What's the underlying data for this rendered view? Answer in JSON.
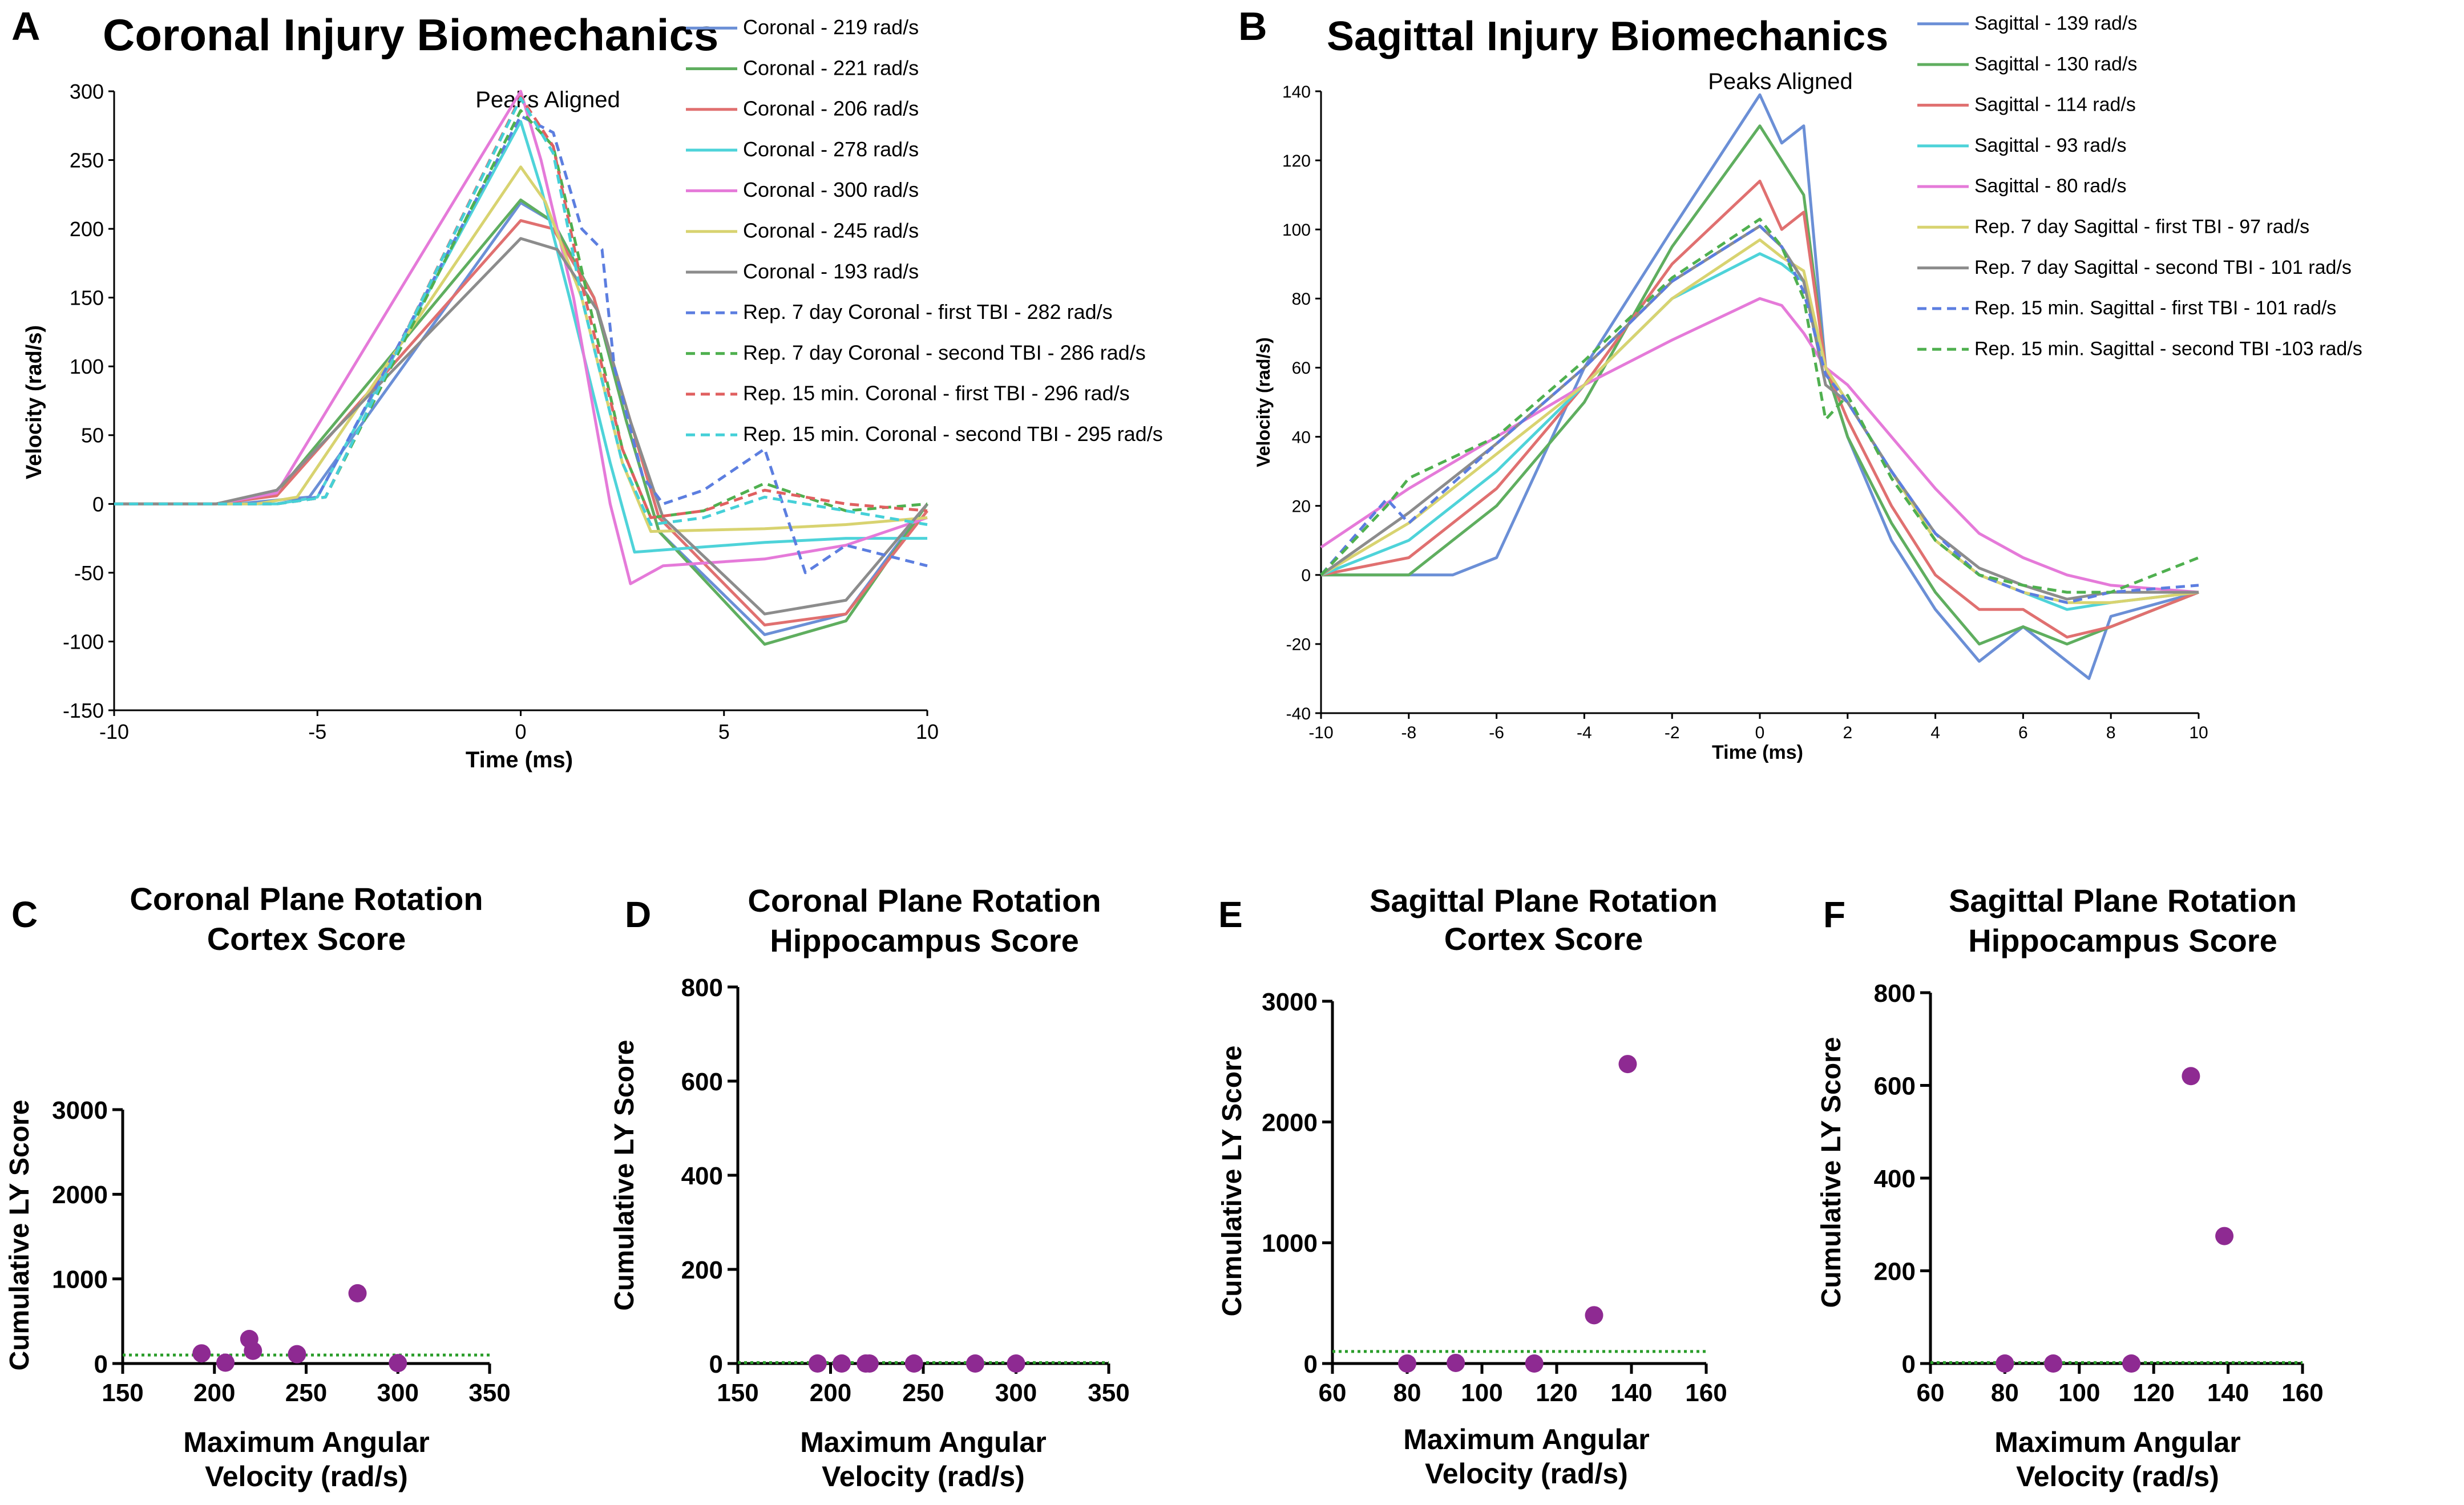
{
  "panel_letters": [
    "A",
    "B",
    "C",
    "D",
    "E",
    "F"
  ],
  "chart_data": [
    {
      "id": "A",
      "type": "line",
      "title": "Coronal Injury Biomechanics",
      "annotation": "Peaks Aligned",
      "xlabel": "Time (ms)",
      "ylabel": "Velocity (rad/s)",
      "xlim": [
        -10,
        10
      ],
      "ylim": [
        -150,
        300
      ],
      "xticks": [
        -10,
        -5,
        0,
        5,
        10
      ],
      "yticks": [
        -150,
        -100,
        -50,
        0,
        50,
        100,
        150,
        200,
        250,
        300
      ],
      "series": [
        {
          "name": "Coronal - 219 rad/s",
          "color": "#6b8fd6",
          "dash": false,
          "x": [
            -10,
            -7,
            -5.2,
            0,
            0.8,
            1.8,
            2.6,
            3.4,
            6,
            8,
            10
          ],
          "y": [
            0,
            0,
            5,
            219,
            205,
            150,
            60,
            -20,
            -95,
            -80,
            0
          ]
        },
        {
          "name": "Coronal - 221 rad/s",
          "color": "#5fae5f",
          "dash": false,
          "x": [
            -10,
            -7.5,
            -6,
            0,
            0.8,
            1.8,
            2.6,
            3.4,
            6,
            8,
            10
          ],
          "y": [
            0,
            0,
            8,
            221,
            205,
            150,
            60,
            -20,
            -102,
            -85,
            0
          ]
        },
        {
          "name": "Coronal - 206 rad/s",
          "color": "#e07070",
          "dash": false,
          "x": [
            -10,
            -7.5,
            -6,
            0,
            0.8,
            1.8,
            2.6,
            3.4,
            6,
            8,
            10
          ],
          "y": [
            0,
            0,
            6,
            206,
            200,
            150,
            70,
            -10,
            -88,
            -80,
            -5
          ]
        },
        {
          "name": "Coronal - 278 rad/s",
          "color": "#4ed3d9",
          "dash": false,
          "x": [
            -10,
            -6,
            -5,
            0,
            0.5,
            1.2,
            2.2,
            2.8,
            6,
            8,
            10
          ],
          "y": [
            0,
            0,
            5,
            278,
            230,
            150,
            30,
            -35,
            -28,
            -25,
            -25
          ]
        },
        {
          "name": "Coronal - 300 rad/s",
          "color": "#e57ad9",
          "dash": false,
          "x": [
            -10,
            -7.5,
            -6,
            0,
            0.5,
            1.3,
            2.2,
            2.7,
            3.5,
            6,
            8,
            10
          ],
          "y": [
            0,
            0,
            8,
            300,
            250,
            150,
            0,
            -58,
            -45,
            -40,
            -30,
            -10
          ]
        },
        {
          "name": "Coronal - 245 rad/s",
          "color": "#d8d370",
          "dash": false,
          "x": [
            -10,
            -6.5,
            -5.5,
            0,
            0.6,
            1.5,
            2.5,
            3.2,
            6,
            8,
            10
          ],
          "y": [
            0,
            0,
            5,
            245,
            220,
            150,
            30,
            -20,
            -18,
            -15,
            -10
          ]
        },
        {
          "name": "Coronal - 193 rad/s",
          "color": "#8c8c8c",
          "dash": false,
          "x": [
            -10,
            -7.5,
            -6,
            0,
            0.9,
            1.9,
            2.7,
            3.5,
            6,
            8,
            10
          ],
          "y": [
            0,
            0,
            10,
            193,
            185,
            140,
            60,
            -10,
            -80,
            -70,
            0
          ]
        },
        {
          "name": "Rep. 7 day Coronal - first TBI - 282 rad/s",
          "color": "#5c7ee0",
          "dash": true,
          "x": [
            -10,
            -6,
            -5,
            0,
            0.8,
            1.5,
            2,
            2.3,
            3,
            3.5,
            4.5,
            6,
            7,
            8,
            10
          ],
          "y": [
            0,
            0,
            5,
            282,
            270,
            200,
            185,
            100,
            20,
            0,
            10,
            40,
            -50,
            -30,
            -45
          ]
        },
        {
          "name": "Rep. 7 day Coronal - second TBI - 286 rad/s",
          "color": "#4fb04f",
          "dash": true,
          "x": [
            -10,
            -6,
            -4.8,
            0,
            0.8,
            1.5,
            2.5,
            3.2,
            4.5,
            6,
            7,
            8,
            10
          ],
          "y": [
            0,
            0,
            5,
            286,
            260,
            170,
            40,
            -10,
            -5,
            15,
            5,
            -5,
            0
          ]
        },
        {
          "name": "Rep. 15 min. Coronal - first TBI - 296 rad/s",
          "color": "#e06060",
          "dash": true,
          "x": [
            -10,
            -6,
            -4.8,
            0,
            0.8,
            1.5,
            2.5,
            3.2,
            4.5,
            6,
            8,
            10
          ],
          "y": [
            0,
            0,
            5,
            296,
            260,
            160,
            40,
            -10,
            -5,
            10,
            0,
            -5
          ]
        },
        {
          "name": "Rep. 15 min. Coronal - second TBI - 295 rad/s",
          "color": "#45d0d8",
          "dash": true,
          "x": [
            -10,
            -6,
            -4.8,
            0,
            0.8,
            1.5,
            2.5,
            3.2,
            4.5,
            6,
            8,
            10
          ],
          "y": [
            0,
            0,
            5,
            295,
            255,
            150,
            30,
            -15,
            -10,
            5,
            -5,
            -15
          ]
        }
      ]
    },
    {
      "id": "B",
      "type": "line",
      "title": "Sagittal Injury Biomechanics",
      "annotation": "Peaks Aligned",
      "xlabel": "Time (ms)",
      "ylabel": "Velocity (rad/s)",
      "xlim": [
        -10,
        10
      ],
      "ylim": [
        -40,
        140
      ],
      "xticks": [
        -10,
        -8,
        -6,
        -4,
        -2,
        0,
        2,
        4,
        6,
        8,
        10
      ],
      "yticks": [
        -40,
        -20,
        0,
        20,
        40,
        60,
        80,
        100,
        120,
        140
      ],
      "series": [
        {
          "name": "Sagittal - 139 rad/s",
          "color": "#6b8fd6",
          "dash": false,
          "x": [
            -10,
            -7,
            -6,
            -4,
            -2,
            0,
            0.5,
            1,
            1.5,
            2,
            3,
            4,
            5,
            6,
            7,
            7.5,
            8,
            10
          ],
          "y": [
            0,
            0,
            5,
            60,
            100,
            139,
            125,
            130,
            60,
            40,
            10,
            -10,
            -25,
            -15,
            -25,
            -30,
            -12,
            -5
          ]
        },
        {
          "name": "Sagittal - 130 rad/s",
          "color": "#5fae5f",
          "dash": false,
          "x": [
            -10,
            -8,
            -6,
            -4,
            -2,
            0,
            0.5,
            1,
            1.5,
            2,
            3,
            4,
            5,
            6,
            7,
            8,
            10
          ],
          "y": [
            0,
            0,
            20,
            50,
            95,
            130,
            120,
            110,
            60,
            40,
            15,
            -5,
            -20,
            -15,
            -20,
            -15,
            -5
          ]
        },
        {
          "name": "Sagittal - 114 rad/s",
          "color": "#e07070",
          "dash": false,
          "x": [
            -10,
            -8,
            -6,
            -4,
            -2,
            0,
            0.5,
            1,
            1.5,
            2,
            3,
            4,
            5,
            6,
            7,
            8,
            10
          ],
          "y": [
            0,
            5,
            25,
            55,
            90,
            114,
            100,
            105,
            60,
            45,
            20,
            0,
            -10,
            -10,
            -18,
            -15,
            -5
          ]
        },
        {
          "name": "Sagittal - 93 rad/s",
          "color": "#4ed3d9",
          "dash": false,
          "x": [
            -10,
            -8,
            -6,
            -4,
            -2,
            0,
            0.5,
            1,
            1.5,
            2,
            3,
            4,
            5,
            6,
            7,
            8,
            10
          ],
          "y": [
            0,
            10,
            30,
            55,
            80,
            93,
            90,
            85,
            60,
            50,
            30,
            10,
            0,
            -5,
            -10,
            -8,
            -5
          ]
        },
        {
          "name": "Sagittal - 80 rad/s",
          "color": "#e57ad9",
          "dash": false,
          "x": [
            -10,
            -8,
            -6,
            -4,
            -2,
            0,
            0.5,
            1,
            1.5,
            2,
            3,
            4,
            5,
            6,
            7,
            8,
            10
          ],
          "y": [
            8,
            25,
            40,
            55,
            68,
            80,
            78,
            70,
            60,
            55,
            40,
            25,
            12,
            5,
            0,
            -3,
            -5
          ]
        },
        {
          "name": "Rep. 7 day Sagittal - first TBI - 97 rad/s",
          "color": "#d8d370",
          "dash": false,
          "x": [
            -10,
            -8,
            -6,
            -4,
            -2,
            0,
            0.5,
            1,
            1.5,
            2,
            3,
            4,
            5,
            6,
            7,
            8,
            10
          ],
          "y": [
            0,
            15,
            35,
            55,
            80,
            97,
            92,
            88,
            60,
            50,
            30,
            10,
            0,
            -5,
            -8,
            -8,
            -5
          ]
        },
        {
          "name": "Rep. 7 day Sagittal - second TBI - 101 rad/s",
          "color": "#8c8c8c",
          "dash": false,
          "x": [
            -10,
            -8,
            -6,
            -4,
            -2,
            0,
            0.5,
            1,
            1.5,
            2,
            3,
            4,
            5,
            6,
            7,
            8,
            10
          ],
          "y": [
            0,
            18,
            38,
            60,
            85,
            101,
            95,
            85,
            55,
            50,
            30,
            12,
            2,
            -3,
            -7,
            -5,
            -5
          ]
        },
        {
          "name": "Rep. 15 min. Sagittal - first TBI - 101 rad/s",
          "color": "#5c7ee0",
          "dash": true,
          "x": [
            -10,
            -8.5,
            -8,
            -6,
            -4,
            -2,
            0,
            0.5,
            1,
            1.5,
            2,
            3,
            4,
            5,
            6,
            7,
            8,
            10
          ],
          "y": [
            0,
            22,
            15,
            38,
            60,
            85,
            101,
            95,
            82,
            58,
            50,
            30,
            12,
            0,
            -5,
            -8,
            -5,
            -3
          ]
        },
        {
          "name": "Rep. 15 min. Sagittal - second TBI -103 rad/s",
          "color": "#4fb04f",
          "dash": true,
          "x": [
            -10,
            -8.5,
            -8,
            -6,
            -4,
            -2,
            0,
            0.5,
            1,
            1.5,
            2,
            3,
            4,
            5,
            6,
            7,
            8,
            10
          ],
          "y": [
            0,
            20,
            28,
            40,
            62,
            86,
            103,
            95,
            80,
            45,
            52,
            28,
            10,
            0,
            -3,
            -5,
            -5,
            5
          ]
        }
      ]
    },
    {
      "id": "C",
      "type": "scatter",
      "title": [
        "Coronal Plane Rotation",
        "Cortex Score"
      ],
      "xlabel": [
        "Maximum Angular",
        "Velocity (rad/s)"
      ],
      "ylabel": "Cumulative LY Score",
      "xlim": [
        150,
        350
      ],
      "ylim": [
        0,
        3000
      ],
      "xticks": [
        150,
        200,
        250,
        300,
        350
      ],
      "yticks": [
        0,
        1000,
        2000,
        3000
      ],
      "threshold": 100,
      "points": {
        "x": [
          193,
          206,
          219,
          221,
          245,
          278,
          300
        ],
        "y": [
          120,
          10,
          290,
          150,
          110,
          830,
          5
        ]
      }
    },
    {
      "id": "D",
      "type": "scatter",
      "title": [
        "Coronal Plane Rotation",
        "Hippocampus Score"
      ],
      "xlabel": [
        "Maximum Angular",
        "Velocity (rad/s)"
      ],
      "ylabel": "Cumulative LY Score",
      "xlim": [
        150,
        350
      ],
      "ylim": [
        0,
        800
      ],
      "xticks": [
        150,
        200,
        250,
        300,
        350
      ],
      "yticks": [
        0,
        200,
        400,
        600,
        800
      ],
      "threshold": 2,
      "points": {
        "x": [
          193,
          206,
          219,
          221,
          245,
          278,
          300
        ],
        "y": [
          0,
          0,
          0,
          0,
          0,
          0,
          0
        ]
      }
    },
    {
      "id": "E",
      "type": "scatter",
      "title": [
        "Sagittal Plane Rotation",
        "Cortex Score"
      ],
      "xlabel": [
        "Maximum Angular",
        "Velocity (rad/s)"
      ],
      "ylabel": "Cumulative LY Score",
      "xlim": [
        60,
        160
      ],
      "ylim": [
        0,
        3000
      ],
      "xticks": [
        60,
        80,
        100,
        120,
        140,
        160
      ],
      "yticks": [
        0,
        1000,
        2000,
        3000
      ],
      "threshold": 100,
      "points": {
        "x": [
          80,
          93,
          114,
          130,
          139
        ],
        "y": [
          0,
          5,
          0,
          400,
          2480
        ]
      }
    },
    {
      "id": "F",
      "type": "scatter",
      "title": [
        "Sagittal Plane Rotation",
        "Hippocampus Score"
      ],
      "xlabel": [
        "Maximum Angular",
        "Velocity (rad/s)"
      ],
      "ylabel": "Cumulative LY Score",
      "xlim": [
        60,
        160
      ],
      "ylim": [
        0,
        800
      ],
      "xticks": [
        60,
        80,
        100,
        120,
        140,
        160
      ],
      "yticks": [
        0,
        200,
        400,
        600,
        800
      ],
      "threshold": 2,
      "points": {
        "x": [
          80,
          93,
          114,
          130,
          139
        ],
        "y": [
          0,
          0,
          0,
          620,
          275
        ]
      }
    }
  ],
  "colors": {
    "scatter_point": "#8e2a92",
    "threshold_line": "#2a9d2a",
    "axis": "#000000"
  }
}
